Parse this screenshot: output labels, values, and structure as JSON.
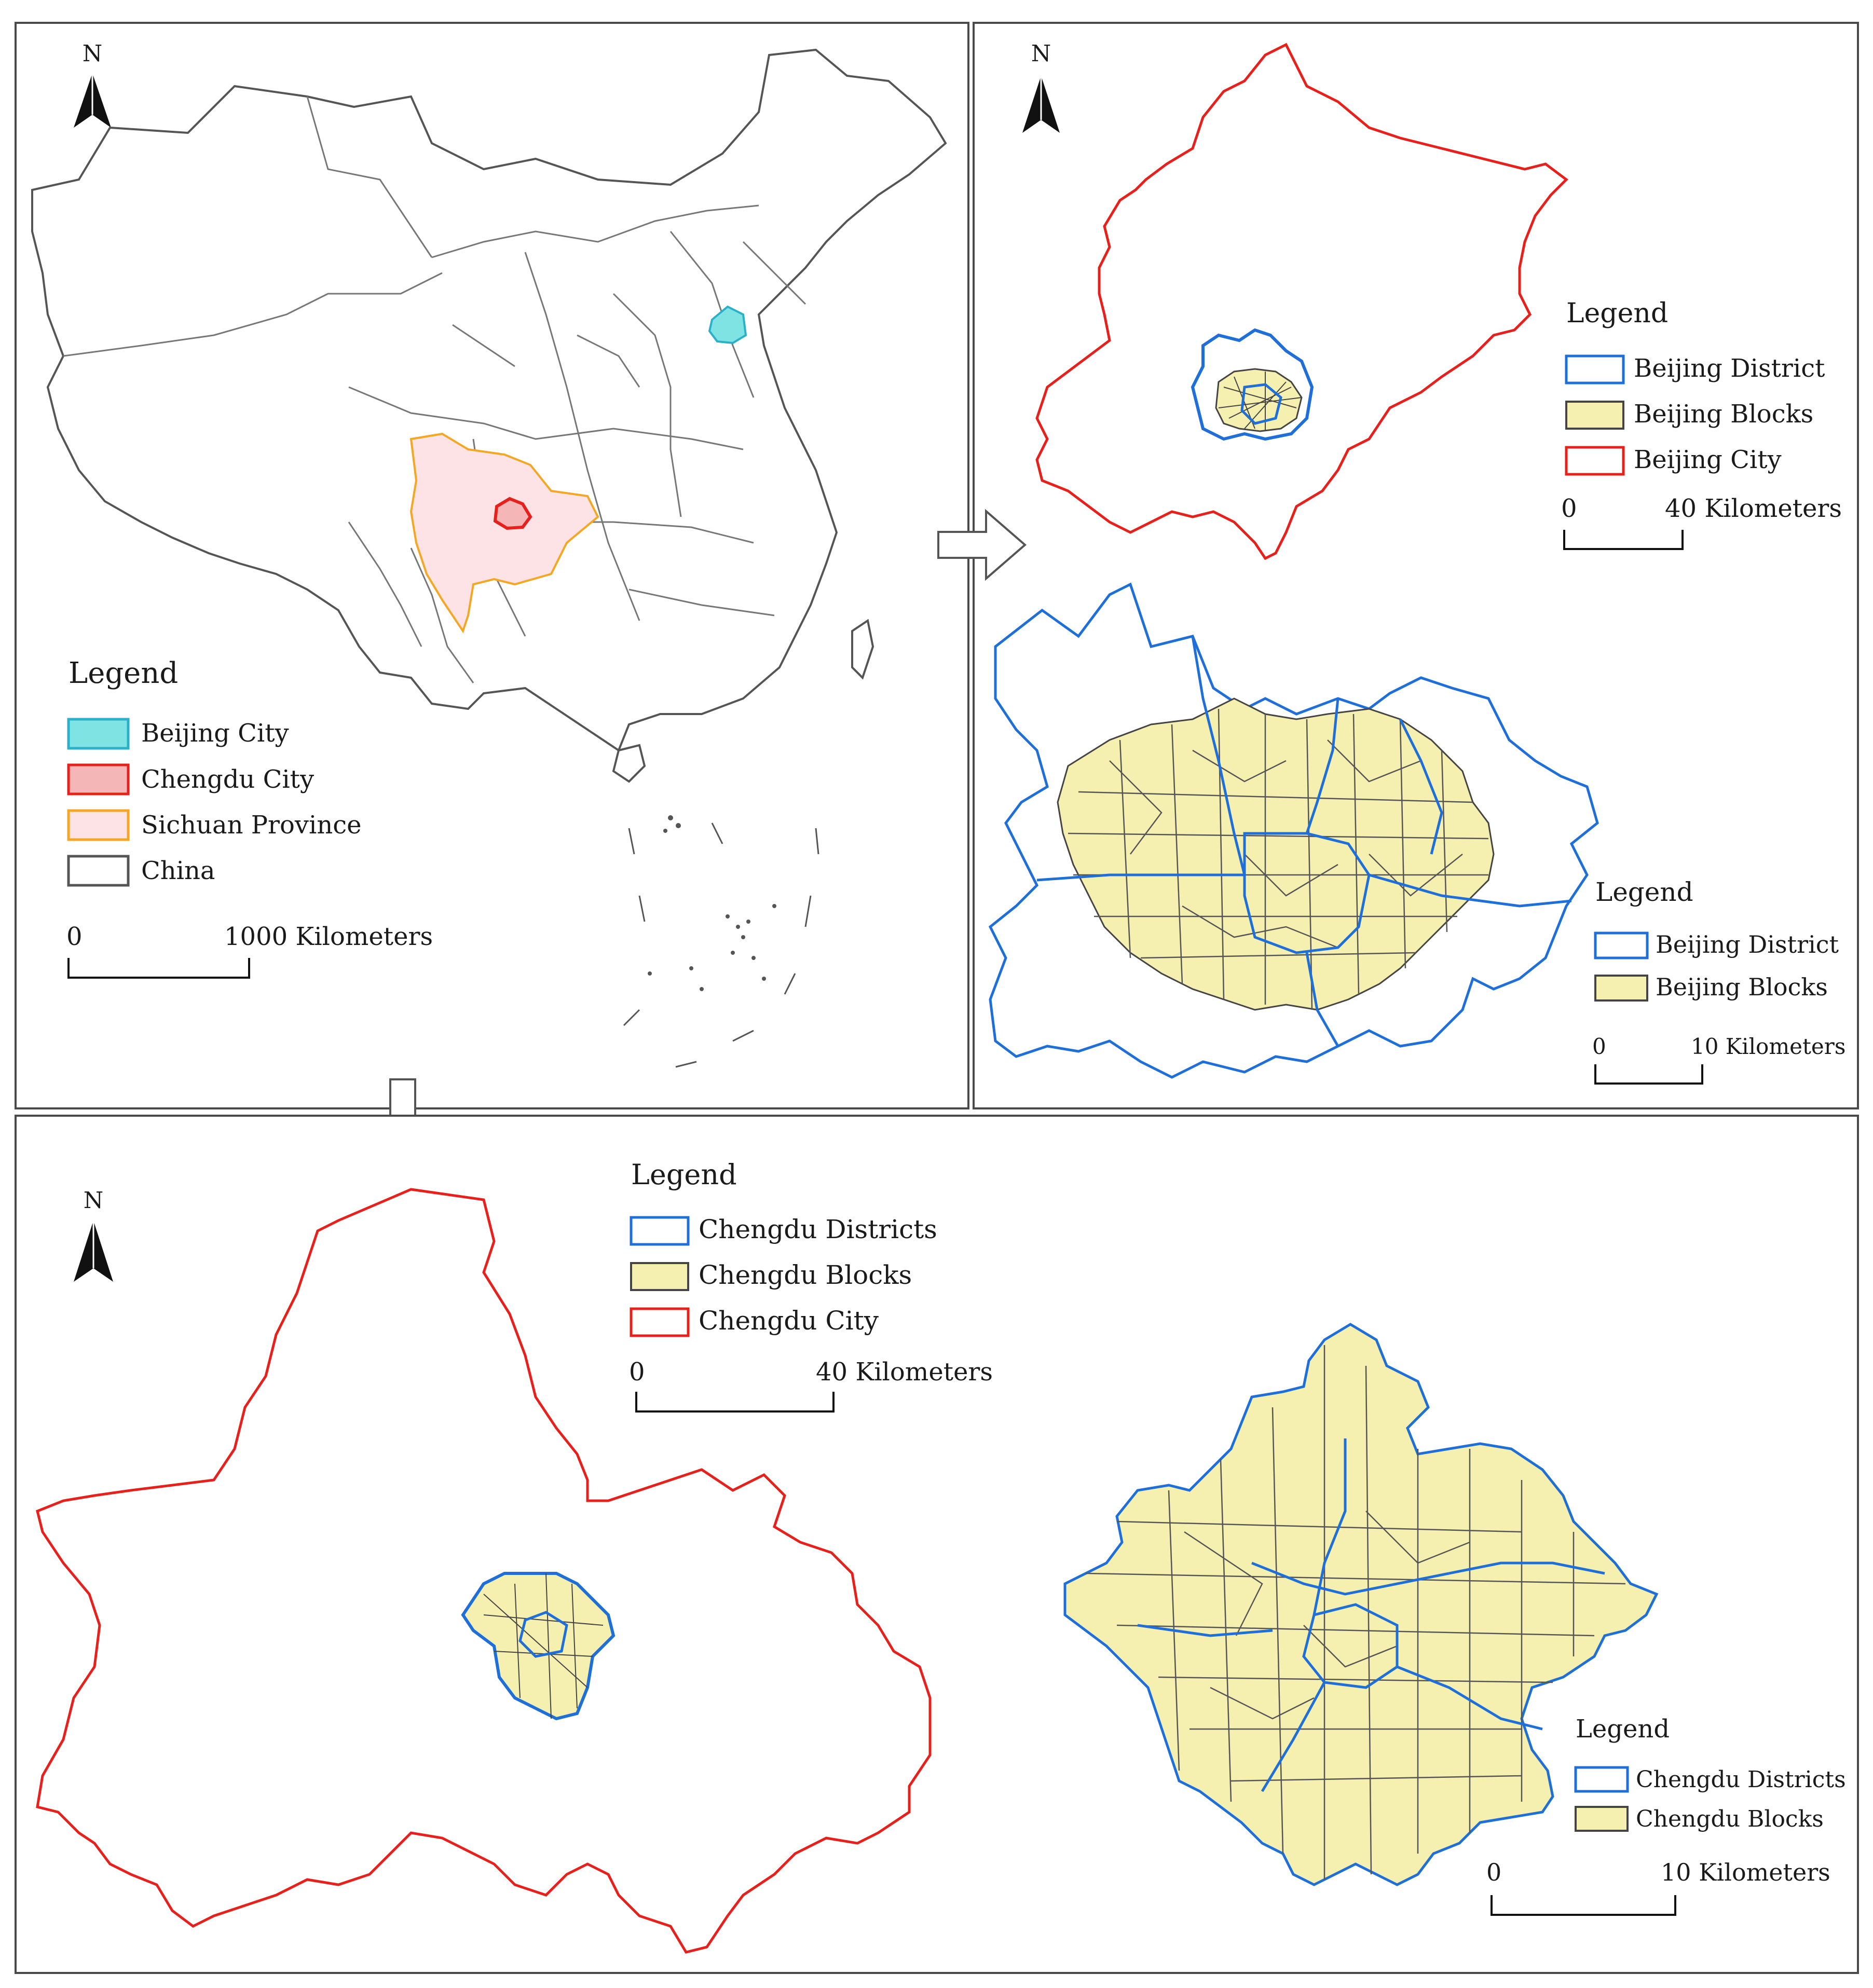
{
  "panels": {
    "china": {
      "north_label": "N",
      "legend_title": "Legend",
      "legend": [
        {
          "label": "Beijing City",
          "fill": "#7fe3e3",
          "stroke": "#2ab0c8"
        },
        {
          "label": "Chengdu City",
          "fill": "#f4b6b6",
          "stroke": "#e8201c"
        },
        {
          "label": "Sichuan Province",
          "fill": "#fde3e6",
          "stroke": "#f5a623"
        },
        {
          "label": "China",
          "fill": "#ffffff",
          "stroke": "#555555"
        }
      ],
      "scale_zero": "0",
      "scale_label": "1000 Kilometers"
    },
    "beijing_city": {
      "north_label": "N",
      "legend_title": "Legend",
      "legend": [
        {
          "label": "Beijing District",
          "fill": "#ffffff",
          "stroke": "#1e6fd9"
        },
        {
          "label": "Beijing Blocks",
          "fill": "#f5f0b0",
          "stroke": "#444444"
        },
        {
          "label": "Beijing City",
          "fill": "#ffffff",
          "stroke": "#e8201c"
        }
      ],
      "scale_zero": "0",
      "scale_label": "40 Kilometers"
    },
    "beijing_detail": {
      "legend_title": "Legend",
      "legend": [
        {
          "label": "Beijing District",
          "fill": "#ffffff",
          "stroke": "#1e6fd9"
        },
        {
          "label": "Beijing Blocks",
          "fill": "#f5f0b0",
          "stroke": "#444444"
        }
      ],
      "scale_zero": "0",
      "scale_label": "10 Kilometers"
    },
    "chengdu": {
      "north_label": "N",
      "legend_title": "Legend",
      "legend": [
        {
          "label": "Chengdu Districts",
          "fill": "#ffffff",
          "stroke": "#1e6fd9"
        },
        {
          "label": "Chengdu Blocks",
          "fill": "#f5f0b0",
          "stroke": "#444444"
        },
        {
          "label": "Chengdu City",
          "fill": "#ffffff",
          "stroke": "#e8201c"
        }
      ],
      "scale_zero": "0",
      "scale_label": "40 Kilometers",
      "detail_legend_title": "Legend",
      "detail_legend": [
        {
          "label": "Chengdu Districts",
          "fill": "#ffffff",
          "stroke": "#1e6fd9"
        },
        {
          "label": "Chengdu Blocks",
          "fill": "#f5f0b0",
          "stroke": "#444444"
        }
      ],
      "detail_scale_zero": "0",
      "detail_scale_label": "10 Kilometers"
    }
  },
  "colors": {
    "panel_border": "#4a4a4a",
    "china_outline": "#555555",
    "city_red": "#e8201c",
    "district_blue": "#1e6fd9",
    "block_fill": "#f5f0b0",
    "sichuan_fill": "#fde3e6",
    "sichuan_stroke": "#f5a623",
    "beijing_fill": "#7fe3e3"
  }
}
